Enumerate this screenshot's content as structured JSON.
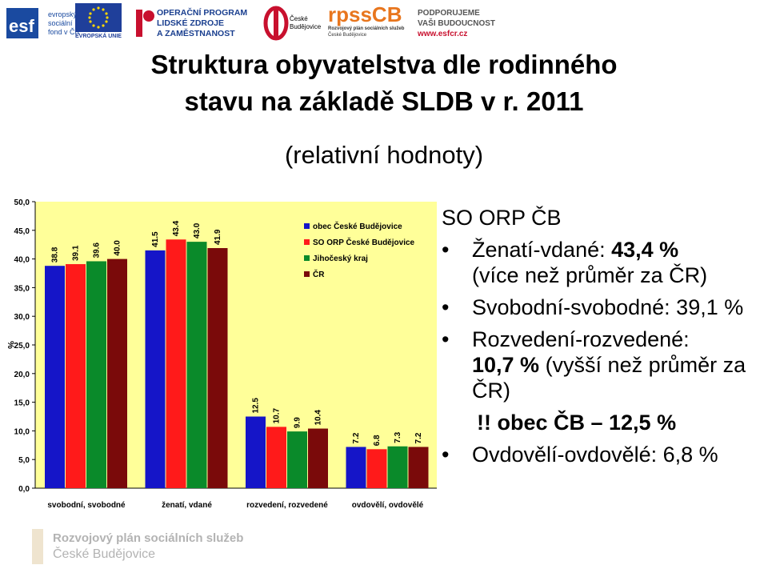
{
  "header": {
    "logos": [
      {
        "id": "esf",
        "lines": [
          "evropský",
          "sociální",
          "fond v ČR"
        ],
        "mark": "esf"
      },
      {
        "id": "eu",
        "lines": [
          "EVROPSKÁ UNIE"
        ]
      },
      {
        "id": "op",
        "lines": [
          "OPERAČNÍ PROGRAM",
          "LIDSKÉ ZDROJE",
          "A ZAMĚSTNANOST"
        ]
      },
      {
        "id": "cb",
        "lines": [
          "České",
          "Budějovice"
        ]
      },
      {
        "id": "rpss",
        "lines": [
          "rpssCB",
          "Rozvojový plán sociálních služeb",
          "České Budějovice"
        ]
      },
      {
        "id": "support",
        "lines": [
          "PODPORUJEME",
          "VAŠI BUDOUCNOST",
          "www.esfcr.cz"
        ]
      }
    ]
  },
  "title": {
    "line1": "Struktura obyvatelstva dle rodinného",
    "line2": "stavu na základě SLDB v r. 2011",
    "subtitle": "(relativní hodnoty)"
  },
  "right_panel": {
    "heading": "SO ORP ČB",
    "bullets": [
      {
        "normal": "Ženatí-vdané: ",
        "bold": "43,4 %",
        "extra": "(více než průměr za ČR)"
      },
      {
        "normal": "Svobodní-svobodné: 39,1 %"
      },
      {
        "normal": "Rozvedení-rozvedené:",
        "bold": "10,7 %",
        "extra_inline": " (vyšší než průměr za ČR)"
      },
      {
        "note": "!! obec ČB – 12,5 %"
      },
      {
        "normal": "Ovdovělí-ovdovělé: 6,8 %"
      }
    ]
  },
  "footer": {
    "line1": "Rozvojový plán sociálních služeb",
    "line2": "České Budějovice"
  },
  "colors": {
    "obec": "#1515c8",
    "orp": "#ff1a1a",
    "kraj": "#0a8a2a",
    "cr": "#7a0a0a",
    "plot_bg": "#ffff99"
  },
  "chart_data": {
    "type": "bar",
    "categories": [
      "svobodní, svobodné",
      "ženatí, vdané",
      "rozvedení, rozvedené",
      "ovdovělí, ovdovělé"
    ],
    "series": [
      {
        "name": "obec České Budějovice",
        "values": [
          38.8,
          41.5,
          12.5,
          7.2
        ]
      },
      {
        "name": "SO ORP České Budějovice",
        "values": [
          39.1,
          43.4,
          10.7,
          6.8
        ]
      },
      {
        "name": "Jihočeský kraj",
        "values": [
          39.6,
          43.0,
          9.9,
          7.3
        ]
      },
      {
        "name": "ČR",
        "values": [
          40.0,
          41.9,
          10.4,
          7.2
        ]
      }
    ],
    "ylabel": "%",
    "ylim": [
      0,
      50
    ],
    "yticks": [
      "0,0",
      "5,0",
      "10,0",
      "15,0",
      "20,0",
      "25,0",
      "30,0",
      "35,0",
      "40,0",
      "45,0",
      "50,0"
    ],
    "legend": "top-right",
    "grid": false
  }
}
